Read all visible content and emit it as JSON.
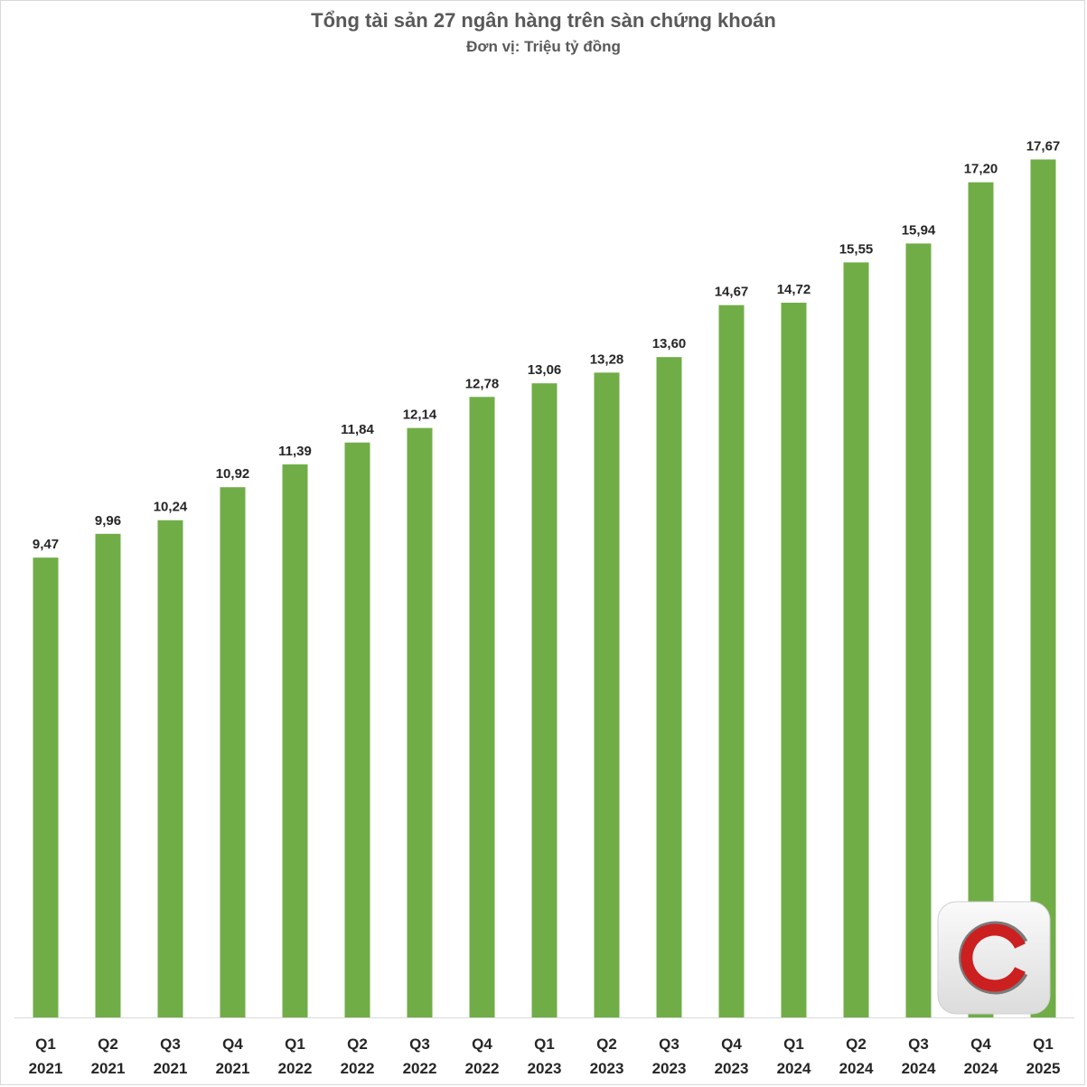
{
  "chart_data": {
    "type": "bar",
    "title": "Tổng tài sản 27 ngân hàng trên sàn chứng khoán",
    "subtitle": "Đơn vị: Triệu tỷ đồng",
    "categories": [
      [
        "Q1",
        "2021"
      ],
      [
        "Q2",
        "2021"
      ],
      [
        "Q3",
        "2021"
      ],
      [
        "Q4",
        "2021"
      ],
      [
        "Q1",
        "2022"
      ],
      [
        "Q2",
        "2022"
      ],
      [
        "Q3",
        "2022"
      ],
      [
        "Q4",
        "2022"
      ],
      [
        "Q1",
        "2023"
      ],
      [
        "Q2",
        "2023"
      ],
      [
        "Q3",
        "2023"
      ],
      [
        "Q4",
        "2023"
      ],
      [
        "Q1",
        "2024"
      ],
      [
        "Q2",
        "2024"
      ],
      [
        "Q3",
        "2024"
      ],
      [
        "Q4",
        "2024"
      ],
      [
        "Q1",
        "2025"
      ]
    ],
    "values": [
      9.47,
      9.96,
      10.24,
      10.92,
      11.39,
      11.84,
      12.14,
      12.78,
      13.06,
      13.28,
      13.6,
      14.67,
      14.72,
      15.55,
      15.94,
      17.2,
      17.67
    ],
    "value_labels": [
      "9,47",
      "9,96",
      "10,24",
      "10,92",
      "11,39",
      "11,84",
      "12,14",
      "12,78",
      "13,06",
      "13,28",
      "13,60",
      "14,67",
      "14,72",
      "15,55",
      "15,94",
      "17,20",
      "17,67"
    ],
    "ylim": [
      0,
      18.2
    ],
    "grid": false,
    "legend": "none",
    "bar_color": "#70ad47",
    "text_color": "#262626",
    "title_color": "#595959"
  },
  "logo": {
    "name": "c-logo-icon",
    "ring_color": "#cc1f1f",
    "bg_color": "#eeeeee"
  }
}
